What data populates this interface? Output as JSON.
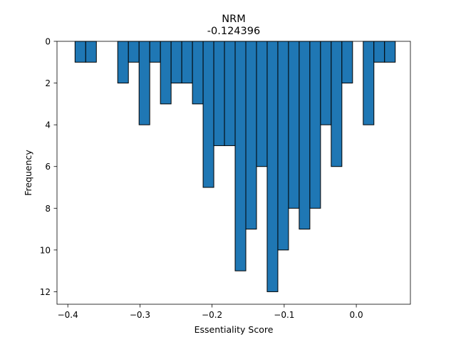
{
  "chart_data": {
    "type": "bar",
    "title": "NRM",
    "subtitle": "-0.124396",
    "xlabel": "Essentiality Score",
    "ylabel": "Frequency",
    "y_inverted": true,
    "xlim": [
      -0.415,
      0.075
    ],
    "ylim": [
      0,
      12.6
    ],
    "xticks": [
      {
        "value": -0.4,
        "label": "−0.4"
      },
      {
        "value": -0.3,
        "label": "−0.3"
      },
      {
        "value": -0.2,
        "label": "−0.2"
      },
      {
        "value": -0.1,
        "label": "−0.1"
      },
      {
        "value": 0.0,
        "label": "0.0"
      }
    ],
    "yticks": [
      {
        "value": 0,
        "label": "0"
      },
      {
        "value": 2,
        "label": "2"
      },
      {
        "value": 4,
        "label": "4"
      },
      {
        "value": 6,
        "label": "6"
      },
      {
        "value": 8,
        "label": "8"
      },
      {
        "value": 10,
        "label": "10"
      },
      {
        "value": 12,
        "label": "12"
      }
    ],
    "bar_color": "#1f77b4",
    "edge_color": "#000000",
    "bins": [
      {
        "x0": -0.39,
        "x1": -0.3752,
        "count": 1
      },
      {
        "x0": -0.3752,
        "x1": -0.3604,
        "count": 1
      },
      {
        "x0": -0.3604,
        "x1": -0.3456,
        "count": 0
      },
      {
        "x0": -0.3456,
        "x1": -0.3308,
        "count": 0
      },
      {
        "x0": -0.3308,
        "x1": -0.316,
        "count": 2
      },
      {
        "x0": -0.316,
        "x1": -0.3012,
        "count": 1
      },
      {
        "x0": -0.3012,
        "x1": -0.2864,
        "count": 4
      },
      {
        "x0": -0.2864,
        "x1": -0.2716,
        "count": 1
      },
      {
        "x0": -0.2716,
        "x1": -0.2568,
        "count": 3
      },
      {
        "x0": -0.2568,
        "x1": -0.242,
        "count": 2
      },
      {
        "x0": -0.242,
        "x1": -0.2272,
        "count": 2
      },
      {
        "x0": -0.2272,
        "x1": -0.2124,
        "count": 3
      },
      {
        "x0": -0.2124,
        "x1": -0.1976,
        "count": 7
      },
      {
        "x0": -0.1976,
        "x1": -0.1828,
        "count": 5
      },
      {
        "x0": -0.1828,
        "x1": -0.168,
        "count": 5
      },
      {
        "x0": -0.168,
        "x1": -0.1532,
        "count": 11
      },
      {
        "x0": -0.1532,
        "x1": -0.1384,
        "count": 9
      },
      {
        "x0": -0.1384,
        "x1": -0.1236,
        "count": 6
      },
      {
        "x0": -0.1236,
        "x1": -0.1088,
        "count": 12
      },
      {
        "x0": -0.1088,
        "x1": -0.094,
        "count": 10
      },
      {
        "x0": -0.094,
        "x1": -0.0792,
        "count": 8
      },
      {
        "x0": -0.0792,
        "x1": -0.0644,
        "count": 9
      },
      {
        "x0": -0.0644,
        "x1": -0.0496,
        "count": 8
      },
      {
        "x0": -0.0496,
        "x1": -0.0348,
        "count": 4
      },
      {
        "x0": -0.0348,
        "x1": -0.02,
        "count": 6
      },
      {
        "x0": -0.02,
        "x1": -0.0052,
        "count": 2
      },
      {
        "x0": -0.0052,
        "x1": 0.0096,
        "count": 0
      },
      {
        "x0": 0.0096,
        "x1": 0.0244,
        "count": 4
      },
      {
        "x0": 0.0244,
        "x1": 0.0392,
        "count": 1
      },
      {
        "x0": 0.0392,
        "x1": 0.054,
        "count": 1
      }
    ]
  }
}
